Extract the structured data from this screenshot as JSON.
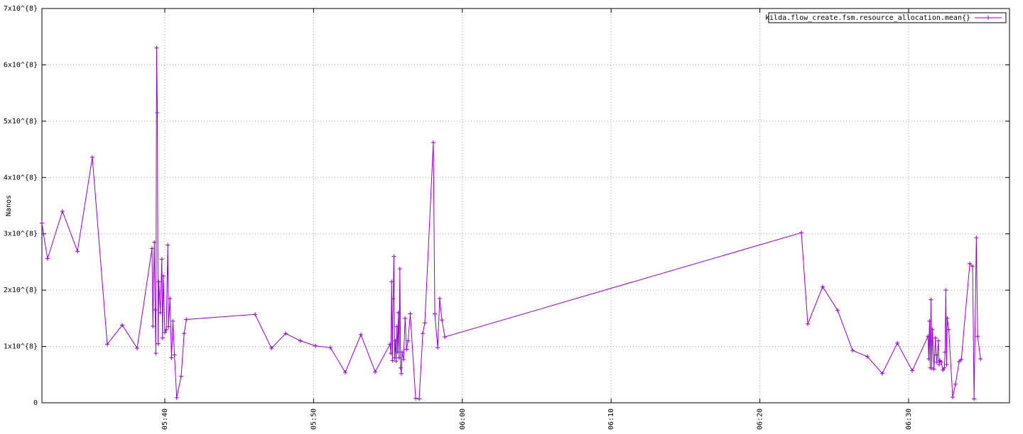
{
  "chart_data": {
    "type": "line",
    "y_label": "Nanos",
    "xlim": [
      331.74,
      396.78
    ],
    "xticks": [
      {
        "value": 340,
        "label": "05:40"
      },
      {
        "value": 350,
        "label": "05:50"
      },
      {
        "value": 360,
        "label": "06:00"
      },
      {
        "value": 370,
        "label": "06:10"
      },
      {
        "value": 380,
        "label": "06:20"
      },
      {
        "value": 390,
        "label": "06:30"
      }
    ],
    "ylim": [
      0,
      700000000.0
    ],
    "yticks": [
      0,
      {
        "value": 100000000.0,
        "label": "1x10^{8}"
      },
      {
        "value": 200000000.0,
        "label": "2x10^{8}"
      },
      {
        "value": 300000000.0,
        "label": "3x10^{8}"
      },
      {
        "value": 400000000.0,
        "label": "4x10^{8}"
      },
      {
        "value": 500000000.0,
        "label": "5x10^{8}"
      },
      {
        "value": 600000000.0,
        "label": "6x10^{8}"
      },
      {
        "value": 700000000.0,
        "label": "7x10^{8}"
      }
    ],
    "grid": true,
    "legend": "top-right",
    "x": [
      331.74,
      331.84,
      332.12,
      333.12,
      334.13,
      335.13,
      336.13,
      337.14,
      338.14,
      339.14,
      339.2,
      339.3,
      339.35,
      339.4,
      339.45,
      339.5,
      339.55,
      339.6,
      339.7,
      339.8,
      339.85,
      339.9,
      340.0,
      340.1,
      340.2,
      340.25,
      340.35,
      340.45,
      340.55,
      340.65,
      340.8,
      341.1,
      341.3,
      341.45,
      346.07,
      347.17,
      348.12,
      349.12,
      350.13,
      351.13,
      352.13,
      353.18,
      354.14,
      355.14,
      355.2,
      355.25,
      355.3,
      355.35,
      355.4,
      355.45,
      355.5,
      355.55,
      355.6,
      355.65,
      355.7,
      355.75,
      355.8,
      355.85,
      355.9,
      355.95,
      356.05,
      356.15,
      356.25,
      356.35,
      356.5,
      356.86,
      357.1,
      357.34,
      357.48,
      358.05,
      358.15,
      358.34,
      358.48,
      358.63,
      358.82,
      382.79,
      383.22,
      384.22,
      385.23,
      386.23,
      387.23,
      388.23,
      389.24,
      390.24,
      391.3,
      391.35,
      391.4,
      391.45,
      391.5,
      391.55,
      391.6,
      391.7,
      391.8,
      391.85,
      391.9,
      392.0,
      392.05,
      392.1,
      392.2,
      392.3,
      392.4,
      392.45,
      392.5,
      392.55,
      392.6,
      392.7,
      392.96,
      393.15,
      393.39,
      393.54,
      394.11,
      394.3,
      394.4,
      394.55,
      394.64,
      394.83
    ],
    "series": [
      {
        "name": "kilda.flow_create.fsm.resource_allocation.mean{}",
        "color": "#9400d3",
        "values": [
          319000000.0,
          300000000.0,
          256000000.0,
          340000000.0,
          269000000.0,
          436000000.0,
          104000000.0,
          138000000.0,
          97000000.0,
          274000000.0,
          136000000.0,
          285000000.0,
          165000000.0,
          88000000.0,
          630000000.0,
          515000000.0,
          105000000.0,
          215000000.0,
          160000000.0,
          255000000.0,
          115000000.0,
          225000000.0,
          125000000.0,
          130000000.0,
          280000000.0,
          135000000.0,
          185000000.0,
          80000000.0,
          145000000.0,
          85000000.0,
          9000000.0,
          47000000.0,
          123000000.0,
          148000000.0,
          157000000.0,
          97000000.0,
          123000000.0,
          110000000.0,
          101000000.0,
          98000000.0,
          54000000.0,
          121000000.0,
          55000000.0,
          104000000.0,
          88000000.0,
          215000000.0,
          75000000.0,
          185000000.0,
          260000000.0,
          80000000.0,
          110000000.0,
          74000000.0,
          135000000.0,
          90000000.0,
          160000000.0,
          80000000.0,
          238000000.0,
          62000000.0,
          52000000.0,
          90000000.0,
          77000000.0,
          150000000.0,
          95000000.0,
          110000000.0,
          158000000.0,
          8000000.0,
          7000000.0,
          123000000.0,
          142000000.0,
          462000000.0,
          158000000.0,
          98000000.0,
          185000000.0,
          147000000.0,
          117000000.0,
          302000000.0,
          140000000.0,
          206000000.0,
          164000000.0,
          93000000.0,
          82000000.0,
          52000000.0,
          106000000.0,
          57000000.0,
          118000000.0,
          78000000.0,
          145000000.0,
          62000000.0,
          183000000.0,
          62000000.0,
          130000000.0,
          60000000.0,
          115000000.0,
          85000000.0,
          72000000.0,
          110000000.0,
          68000000.0,
          75000000.0,
          72000000.0,
          58000000.0,
          62000000.0,
          90000000.0,
          200000000.0,
          68000000.0,
          150000000.0,
          130000000.0,
          10000000.0,
          33000000.0,
          73000000.0,
          77000000.0,
          247000000.0,
          242000000.0,
          7000000.0,
          293000000.0,
          118000000.0,
          78000000.0
        ]
      }
    ]
  }
}
